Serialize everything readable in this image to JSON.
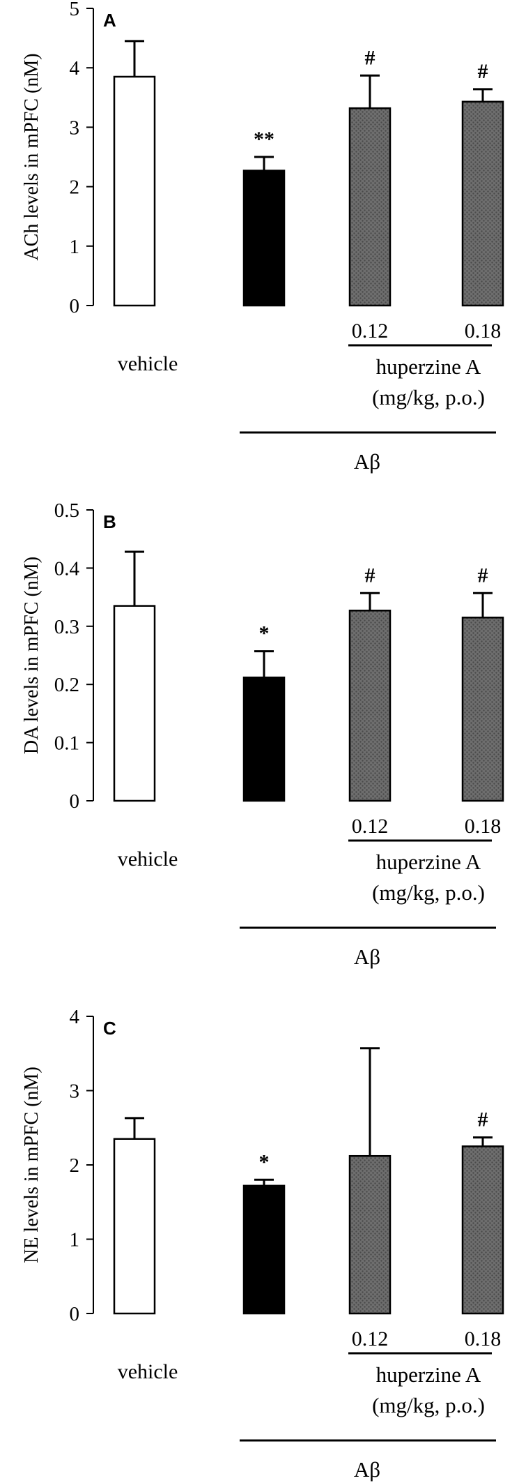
{
  "chart_data": [
    {
      "panel_label": "A",
      "type": "bar",
      "ylabel": "ACh levels in mPFC (nM)",
      "ylim": [
        0,
        5
      ],
      "yticks": [
        "0",
        "1",
        "2",
        "3",
        "4",
        "5"
      ],
      "categories": [
        "vehicle",
        "Aβ",
        "Aβ + huperzine A 0.12",
        "Aβ + huperzine A 0.18"
      ],
      "values": [
        3.85,
        2.27,
        3.32,
        3.43
      ],
      "errors": [
        0.6,
        0.23,
        0.55,
        0.21
      ],
      "significance": [
        "",
        "**",
        "#",
        "#"
      ],
      "bar_fills": [
        "white",
        "black",
        "pattern",
        "pattern"
      ]
    },
    {
      "panel_label": "B",
      "type": "bar",
      "ylabel": "DA levels in mPFC (nM)",
      "ylim": [
        0,
        0.5
      ],
      "yticks": [
        "0",
        "0.1",
        "0.2",
        "0.3",
        "0.4",
        "0.5"
      ],
      "categories": [
        "vehicle",
        "Aβ",
        "Aβ + huperzine A 0.12",
        "Aβ + huperzine A 0.18"
      ],
      "values": [
        0.335,
        0.212,
        0.327,
        0.315
      ],
      "errors": [
        0.093,
        0.045,
        0.03,
        0.042
      ],
      "significance": [
        "",
        "*",
        "#",
        "#"
      ],
      "bar_fills": [
        "white",
        "black",
        "pattern",
        "pattern"
      ]
    },
    {
      "panel_label": "C",
      "type": "bar",
      "ylabel": "NE levels in mPFC (nM)",
      "ylim": [
        0,
        4
      ],
      "yticks": [
        "0",
        "1",
        "2",
        "3",
        "4"
      ],
      "categories": [
        "vehicle",
        "Aβ",
        "Aβ + huperzine A 0.12",
        "Aβ + huperzine A 0.18"
      ],
      "values": [
        2.35,
        1.72,
        2.12,
        2.25
      ],
      "errors": [
        0.28,
        0.08,
        1.45,
        0.12
      ],
      "significance": [
        "",
        "*",
        "",
        "#"
      ],
      "bar_fills": [
        "white",
        "black",
        "pattern",
        "pattern"
      ]
    }
  ],
  "labels": {
    "vehicle": "vehicle",
    "dose_1": "0.12",
    "dose_2": "0.18",
    "drug": "huperzine A",
    "dose_unit": "(mg/kg, p.o.)",
    "abeta": "Aβ"
  }
}
